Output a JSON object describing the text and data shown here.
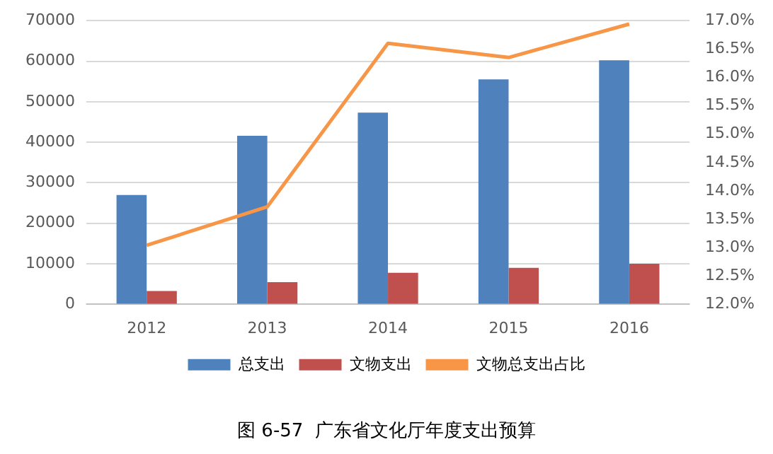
{
  "chart_data": {
    "type": "bar",
    "title": "图 6-57  广东省文化厅年度支出预算",
    "categories": [
      "2012",
      "2013",
      "2014",
      "2015",
      "2016"
    ],
    "series": [
      {
        "name": "总支出",
        "color": "#4f81bd",
        "values": [
          27000,
          41600,
          47300,
          55500,
          60200
        ]
      },
      {
        "name": "文物支出",
        "color": "#c0504d",
        "values": [
          3300,
          5500,
          7800,
          9000,
          10000
        ]
      },
      {
        "name": "文物总支出占比",
        "type": "line",
        "axis": "y2",
        "color": "#f79646",
        "values": [
          13.04,
          13.72,
          16.6,
          16.35,
          16.94
        ]
      }
    ],
    "ylim": [
      0,
      70000
    ],
    "yticks": [
      0,
      10000,
      20000,
      30000,
      40000,
      50000,
      60000,
      70000
    ],
    "y2lim": [
      12,
      17
    ],
    "y2ticks": [
      {
        "value": 12,
        "label": "12.0%"
      },
      {
        "value": 12.5,
        "label": "12.5%"
      },
      {
        "value": 13,
        "label": "13.0%"
      },
      {
        "value": 13.5,
        "label": "13.5%"
      },
      {
        "value": 14,
        "label": "14.0%"
      },
      {
        "value": 14.5,
        "label": "14.5%"
      },
      {
        "value": 15,
        "label": "15.0%"
      },
      {
        "value": 15.5,
        "label": "15.5%"
      },
      {
        "value": 16,
        "label": "16.0%"
      },
      {
        "value": 16.5,
        "label": "16.5%"
      },
      {
        "value": 17,
        "label": "17.0%"
      }
    ],
    "grid": "y",
    "legend": "bottom",
    "marker": "none"
  }
}
